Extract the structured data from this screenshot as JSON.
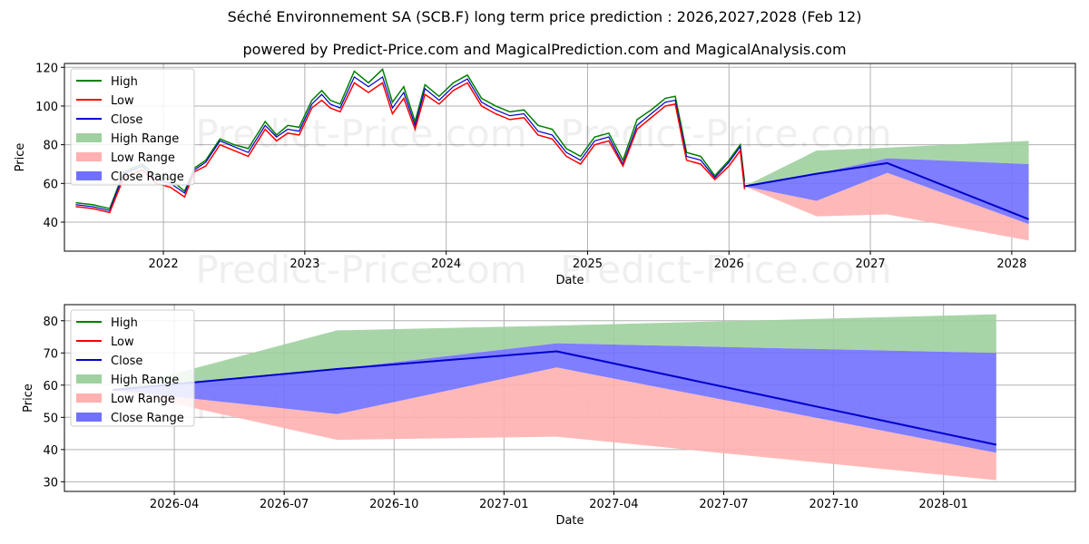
{
  "title": "Séché Environnement SA (SCB.F) long term price prediction : 2026,2027,2028 (Feb 12)",
  "subtitle": "powered by Predict-Price.com and MagicalPrediction.com and MagicalAnalysis.com",
  "watermark": "Predict-Price.com",
  "colors": {
    "high": "#008000",
    "low": "#ff0000",
    "close": "#0000cc",
    "high_range": "#9fd09f",
    "low_range": "#ffb0b0",
    "close_range": "#7070ff"
  },
  "legend": [
    "High",
    "Low",
    "Close",
    "High Range",
    "Low Range",
    "Close Range"
  ],
  "chart_data": [
    {
      "type": "line",
      "title": "",
      "xlabel": "Date",
      "ylabel": "Price",
      "xlim": [
        2021.3,
        2028.45
      ],
      "ylim": [
        25,
        122
      ],
      "x_ticks": [
        2022,
        2023,
        2024,
        2025,
        2026,
        2027,
        2028
      ],
      "x_tick_labels": [
        "2022",
        "2023",
        "2024",
        "2025",
        "2026",
        "2027",
        "2028"
      ],
      "y_ticks": [
        40,
        60,
        80,
        100,
        120
      ],
      "grid": true,
      "legend_position": "upper-left",
      "history": {
        "x": [
          2021.38,
          2021.5,
          2021.62,
          2021.72,
          2021.85,
          2021.95,
          2022.05,
          2022.15,
          2022.22,
          2022.3,
          2022.4,
          2022.5,
          2022.6,
          2022.72,
          2022.8,
          2022.88,
          2022.96,
          2023.05,
          2023.12,
          2023.18,
          2023.25,
          2023.35,
          2023.45,
          2023.55,
          2023.62,
          2023.7,
          2023.78,
          2023.85,
          2023.95,
          2024.05,
          2024.15,
          2024.25,
          2024.35,
          2024.45,
          2024.55,
          2024.65,
          2024.75,
          2024.85,
          2024.95,
          2025.05,
          2025.15,
          2025.25,
          2025.35,
          2025.45,
          2025.55,
          2025.62,
          2025.7,
          2025.8,
          2025.9,
          2026.0,
          2026.08,
          2026.11
        ],
        "high": [
          50,
          49,
          47,
          66,
          70,
          64,
          62,
          56,
          68,
          72,
          83,
          80,
          78,
          92,
          85,
          90,
          89,
          103,
          108,
          103,
          101,
          118,
          112,
          119,
          102,
          110,
          92,
          111,
          105,
          112,
          116,
          104,
          100,
          97,
          98,
          90,
          88,
          78,
          74,
          84,
          86,
          72,
          93,
          98,
          104,
          105,
          76,
          74,
          64,
          72,
          80,
          61
        ],
        "low": [
          48,
          47,
          45,
          63,
          67,
          60,
          58,
          53,
          66,
          69,
          80,
          77,
          74,
          88,
          82,
          86,
          85,
          99,
          103,
          99,
          97,
          112,
          107,
          112,
          96,
          104,
          88,
          106,
          101,
          108,
          112,
          100,
          96,
          93,
          94,
          85,
          83,
          74,
          70,
          80,
          82,
          69,
          88,
          94,
          100,
          101,
          72,
          70,
          62,
          69,
          77,
          57
        ],
        "close": [
          49,
          48,
          46,
          65,
          69,
          62,
          60,
          55,
          67,
          71,
          82,
          79,
          76,
          90,
          84,
          88,
          87,
          101,
          106,
          101,
          99,
          115,
          110,
          115,
          99,
          107,
          90,
          109,
          103,
          110,
          114,
          102,
          98,
          95,
          96,
          87,
          85,
          76,
          72,
          82,
          84,
          70,
          90,
          96,
          102,
          103,
          74,
          72,
          63,
          71,
          79,
          59
        ]
      },
      "forecast": {
        "x": [
          2026.11,
          2026.62,
          2027.12,
          2028.12
        ],
        "close": [
          58.5,
          65,
          70.5,
          41.5
        ],
        "high_range": {
          "upper": [
            58.5,
            77,
            78.5,
            82
          ],
          "lower": [
            58.5,
            65,
            73,
            70
          ]
        },
        "low_range": {
          "upper": [
            58.5,
            51,
            65.5,
            39
          ],
          "lower": [
            58.5,
            43,
            44,
            30.5
          ]
        },
        "close_range": {
          "upper": [
            58.5,
            65,
            73,
            70
          ],
          "lower": [
            58.5,
            51,
            65.5,
            39
          ]
        }
      }
    },
    {
      "type": "line",
      "title": "",
      "xlabel": "Date",
      "ylabel": "Price",
      "xlim": [
        2026.0,
        2028.3
      ],
      "ylim": [
        27,
        85
      ],
      "x_ticks": [
        2026.25,
        2026.5,
        2026.75,
        2027.0,
        2027.25,
        2027.5,
        2027.75,
        2028.0
      ],
      "x_tick_labels": [
        "2026-04",
        "2026-07",
        "2026-10",
        "2027-01",
        "2027-04",
        "2027-07",
        "2027-10",
        "2028-01"
      ],
      "y_ticks": [
        30,
        40,
        50,
        60,
        70,
        80
      ],
      "grid": true,
      "legend_position": "upper-left",
      "forecast": {
        "x": [
          2026.11,
          2026.62,
          2027.12,
          2028.12
        ],
        "close": [
          58.5,
          65,
          70.5,
          41.5
        ],
        "high_range": {
          "upper": [
            58.5,
            77,
            78.5,
            82
          ],
          "lower": [
            58.5,
            65,
            73,
            70
          ]
        },
        "low_range": {
          "upper": [
            58.5,
            51,
            65.5,
            39
          ],
          "lower": [
            58.5,
            43,
            44,
            30.5
          ]
        },
        "close_range": {
          "upper": [
            58.5,
            65,
            73,
            70
          ],
          "lower": [
            58.5,
            51,
            65.5,
            39
          ]
        }
      }
    }
  ]
}
